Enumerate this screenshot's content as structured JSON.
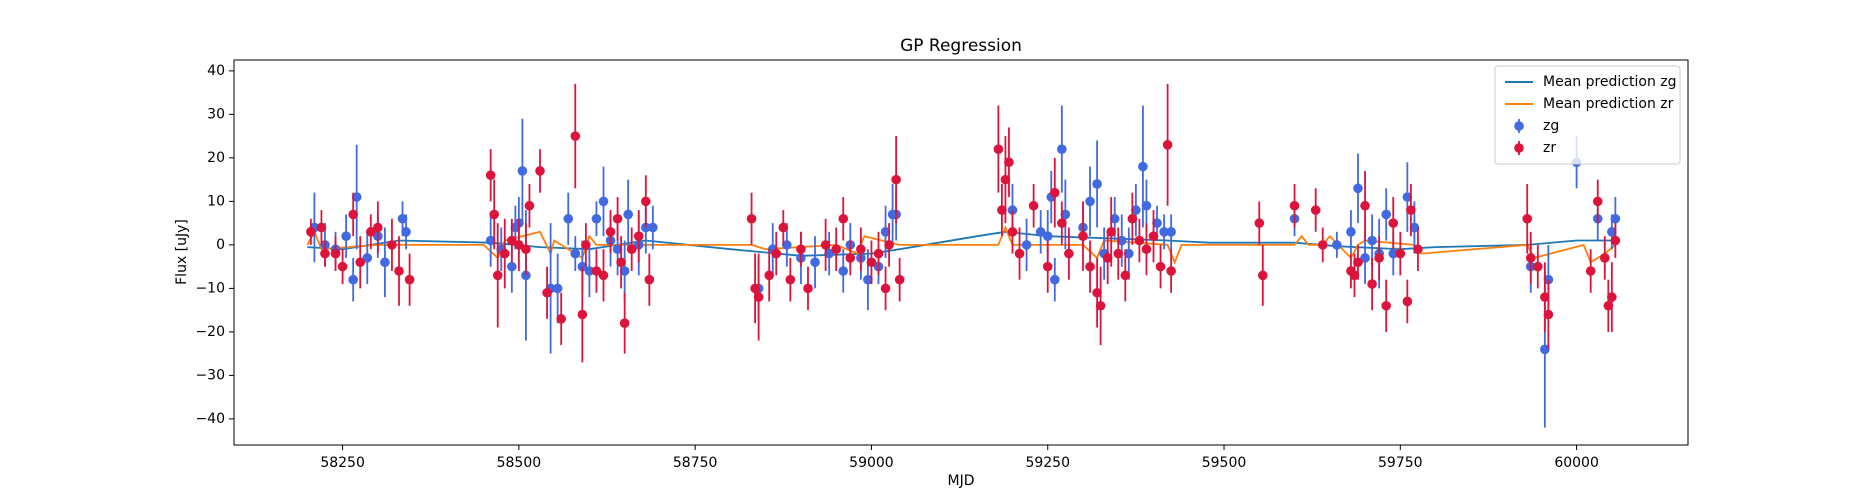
{
  "chart_data": {
    "type": "errorbar",
    "title": "GP Regression",
    "x_label": "MJD",
    "y_label": "Flux [uJy]",
    "xlim": [
      58096,
      60158
    ],
    "ylim": [
      -46,
      42.5
    ],
    "xticks": [
      58250,
      58500,
      58750,
      59000,
      59250,
      59500,
      59750,
      60000
    ],
    "yticks": [
      {
        "value": -40,
        "label": "−40"
      },
      {
        "value": -30,
        "label": "−30"
      },
      {
        "value": -20,
        "label": "−20"
      },
      {
        "value": -10,
        "label": "−10"
      },
      0,
      10,
      20,
      30,
      40
    ],
    "legend": "upper right",
    "series": [
      {
        "name": "Mean prediction zg",
        "color": "#1f77b4",
        "kind": "line",
        "x": [
          58200,
          58250,
          58330,
          58460,
          58530,
          58600,
          58680,
          58800,
          58900,
          59000,
          59040,
          59150,
          59190,
          59250,
          59420,
          59480,
          59600,
          59660,
          59750,
          59800,
          59930,
          60000,
          60055
        ],
        "values": [
          -0.5,
          -1,
          1,
          0.5,
          -0.5,
          -1,
          1,
          -1,
          -2.5,
          -2,
          -1,
          2,
          3,
          2,
          1,
          0.5,
          0.5,
          -0.3,
          -1,
          -0.5,
          0,
          1,
          1
        ]
      },
      {
        "name": "Mean prediction zr",
        "color": "#ff7f0e",
        "kind": "line",
        "x": [
          58200,
          58210,
          58220,
          58300,
          58350,
          58450,
          58470,
          58480,
          58530,
          58545,
          58550,
          58590,
          58600,
          58610,
          58700,
          58830,
          58850,
          58950,
          58980,
          58990,
          59040,
          59180,
          59190,
          59200,
          59300,
          59320,
          59330,
          59420,
          59430,
          59440,
          59550,
          59600,
          59610,
          59620,
          59640,
          59650,
          59680,
          59690,
          59700,
          59770,
          59780,
          59930,
          59940,
          60010,
          60020,
          60040,
          60055
        ],
        "values": [
          0,
          3,
          -1,
          0,
          0,
          0,
          -3,
          1,
          3,
          -2,
          1,
          -3,
          2,
          0,
          0,
          0,
          -1,
          0,
          -2,
          2,
          0,
          0,
          4,
          0,
          0,
          -3,
          1,
          0,
          -4,
          0,
          0,
          0,
          2,
          0,
          0,
          2,
          -3,
          0,
          1,
          0,
          -2,
          0,
          -3,
          0,
          -4,
          -2,
          0
        ]
      },
      {
        "name": "zg",
        "color": "#4169e1",
        "kind": "errorbar",
        "x": [
          58210,
          58225,
          58240,
          58255,
          58265,
          58270,
          58285,
          58300,
          58310,
          58335,
          58340,
          58460,
          58475,
          58490,
          58495,
          58500,
          58505,
          58510,
          58545,
          58555,
          58570,
          58580,
          58590,
          58600,
          58610,
          58620,
          58630,
          58640,
          58650,
          58655,
          58670,
          58680,
          58690,
          58840,
          58860,
          58880,
          58900,
          58920,
          58940,
          58960,
          58970,
          58985,
          58995,
          59010,
          59020,
          59030,
          59035,
          59200,
          59220,
          59240,
          59250,
          59255,
          59260,
          59270,
          59275,
          59300,
          59310,
          59320,
          59330,
          59345,
          59355,
          59365,
          59375,
          59385,
          59390,
          59405,
          59415,
          59425,
          59600,
          59660,
          59680,
          59690,
          59700,
          59710,
          59720,
          59730,
          59740,
          59760,
          59770,
          59935,
          59955,
          59960,
          60000,
          60030,
          60050,
          60055
        ],
        "values": [
          4,
          0,
          -1,
          2,
          -8,
          11,
          -3,
          2,
          -4,
          6,
          3,
          1,
          -1,
          -5,
          4,
          5,
          17,
          -7,
          -10,
          -10,
          6,
          -2,
          -5,
          -6,
          6,
          10,
          1,
          -1,
          -6,
          7,
          0,
          4,
          4,
          -10,
          -1,
          0,
          -3,
          -4,
          -2,
          -6,
          0,
          -3,
          -8,
          -5,
          3,
          7,
          7,
          8,
          0,
          3,
          2,
          11,
          -8,
          22,
          7,
          4,
          10,
          14,
          -2,
          6,
          1,
          -2,
          8,
          18,
          9,
          5,
          3,
          3,
          6,
          0,
          3,
          13,
          -3,
          1,
          -2,
          7,
          -2,
          11,
          4,
          -5,
          -24,
          -8,
          19,
          6,
          3,
          6
        ],
        "errors": [
          8,
          5,
          4,
          5,
          5,
          12,
          6,
          5,
          8,
          4,
          4,
          6,
          5,
          6,
          5,
          6,
          12,
          15,
          15,
          8,
          6,
          4,
          6,
          6,
          4,
          8,
          6,
          6,
          7,
          8,
          7,
          6,
          5,
          7,
          6,
          5,
          6,
          6,
          5,
          5,
          5,
          5,
          7,
          4,
          6,
          7,
          6,
          6,
          6,
          5,
          6,
          6,
          5,
          10,
          8,
          5,
          8,
          10,
          6,
          5,
          6,
          6,
          6,
          14,
          6,
          4,
          4,
          4,
          4,
          3,
          5,
          8,
          6,
          6,
          8,
          6,
          5,
          8,
          6,
          6,
          18,
          8,
          6,
          5,
          4,
          5
        ]
      },
      {
        "name": "zr",
        "color": "#dc143c",
        "kind": "errorbar",
        "x": [
          58205,
          58220,
          58225,
          58240,
          58250,
          58265,
          58275,
          58290,
          58300,
          58320,
          58330,
          58345,
          58460,
          58465,
          58470,
          58480,
          58490,
          58500,
          58510,
          58515,
          58530,
          58540,
          58560,
          58580,
          58590,
          58595,
          58610,
          58620,
          58630,
          58640,
          58645,
          58650,
          58660,
          58670,
          58680,
          58685,
          58830,
          58835,
          58840,
          58855,
          58865,
          58875,
          58885,
          58900,
          58910,
          58935,
          58950,
          58960,
          58970,
          58985,
          59000,
          59010,
          59020,
          59025,
          59035,
          59040,
          59180,
          59185,
          59190,
          59195,
          59200,
          59210,
          59230,
          59250,
          59260,
          59270,
          59280,
          59300,
          59310,
          59320,
          59325,
          59335,
          59340,
          59350,
          59360,
          59370,
          59380,
          59390,
          59400,
          59410,
          59420,
          59425,
          59550,
          59555,
          59600,
          59630,
          59640,
          59680,
          59685,
          59690,
          59700,
          59710,
          59720,
          59730,
          59740,
          59750,
          59760,
          59765,
          59775,
          59930,
          59935,
          59945,
          59955,
          59960,
          60020,
          60030,
          60040,
          60045,
          60050,
          60055
        ],
        "values": [
          3,
          4,
          -2,
          -2,
          -5,
          7,
          -4,
          3,
          4,
          0,
          -6,
          -8,
          16,
          7,
          -7,
          -2,
          1,
          0,
          -1,
          9,
          17,
          -11,
          -17,
          25,
          -16,
          0,
          -6,
          -7,
          3,
          6,
          -4,
          -18,
          -1,
          2,
          10,
          -8,
          6,
          -10,
          -12,
          -7,
          -2,
          4,
          -8,
          -1,
          -10,
          0,
          -1,
          6,
          -3,
          -1,
          -4,
          -2,
          -10,
          0,
          15,
          -8,
          22,
          8,
          15,
          19,
          3,
          -2,
          9,
          -5,
          12,
          5,
          -2,
          2,
          -5,
          -11,
          -14,
          -3,
          3,
          -2,
          -7,
          6,
          1,
          -1,
          2,
          -5,
          23,
          -6,
          5,
          -7,
          9,
          8,
          0,
          -6,
          -7,
          -4,
          9,
          -9,
          -3,
          -14,
          5,
          -2,
          -13,
          8,
          -1,
          6,
          -3,
          -5,
          -12,
          -16,
          -6,
          10,
          -3,
          -14,
          -12,
          1
        ],
        "errors": [
          3,
          4,
          3,
          4,
          4,
          5,
          6,
          4,
          6,
          6,
          8,
          6,
          6,
          8,
          12,
          8,
          5,
          6,
          6,
          5,
          5,
          6,
          6,
          12,
          11,
          5,
          5,
          6,
          5,
          5,
          6,
          7,
          5,
          6,
          6,
          6,
          6,
          8,
          10,
          6,
          5,
          4,
          5,
          4,
          5,
          6,
          5,
          5,
          4,
          5,
          5,
          5,
          5,
          5,
          10,
          5,
          10,
          6,
          10,
          8,
          5,
          6,
          5,
          6,
          8,
          5,
          6,
          8,
          6,
          8,
          9,
          6,
          8,
          6,
          6,
          6,
          5,
          6,
          6,
          5,
          14,
          5,
          5,
          7,
          5,
          5,
          4,
          4,
          5,
          4,
          8,
          6,
          5,
          6,
          6,
          5,
          5,
          6,
          5,
          8,
          6,
          5,
          8,
          8,
          5,
          5,
          5,
          6,
          8,
          4
        ]
      }
    ]
  }
}
